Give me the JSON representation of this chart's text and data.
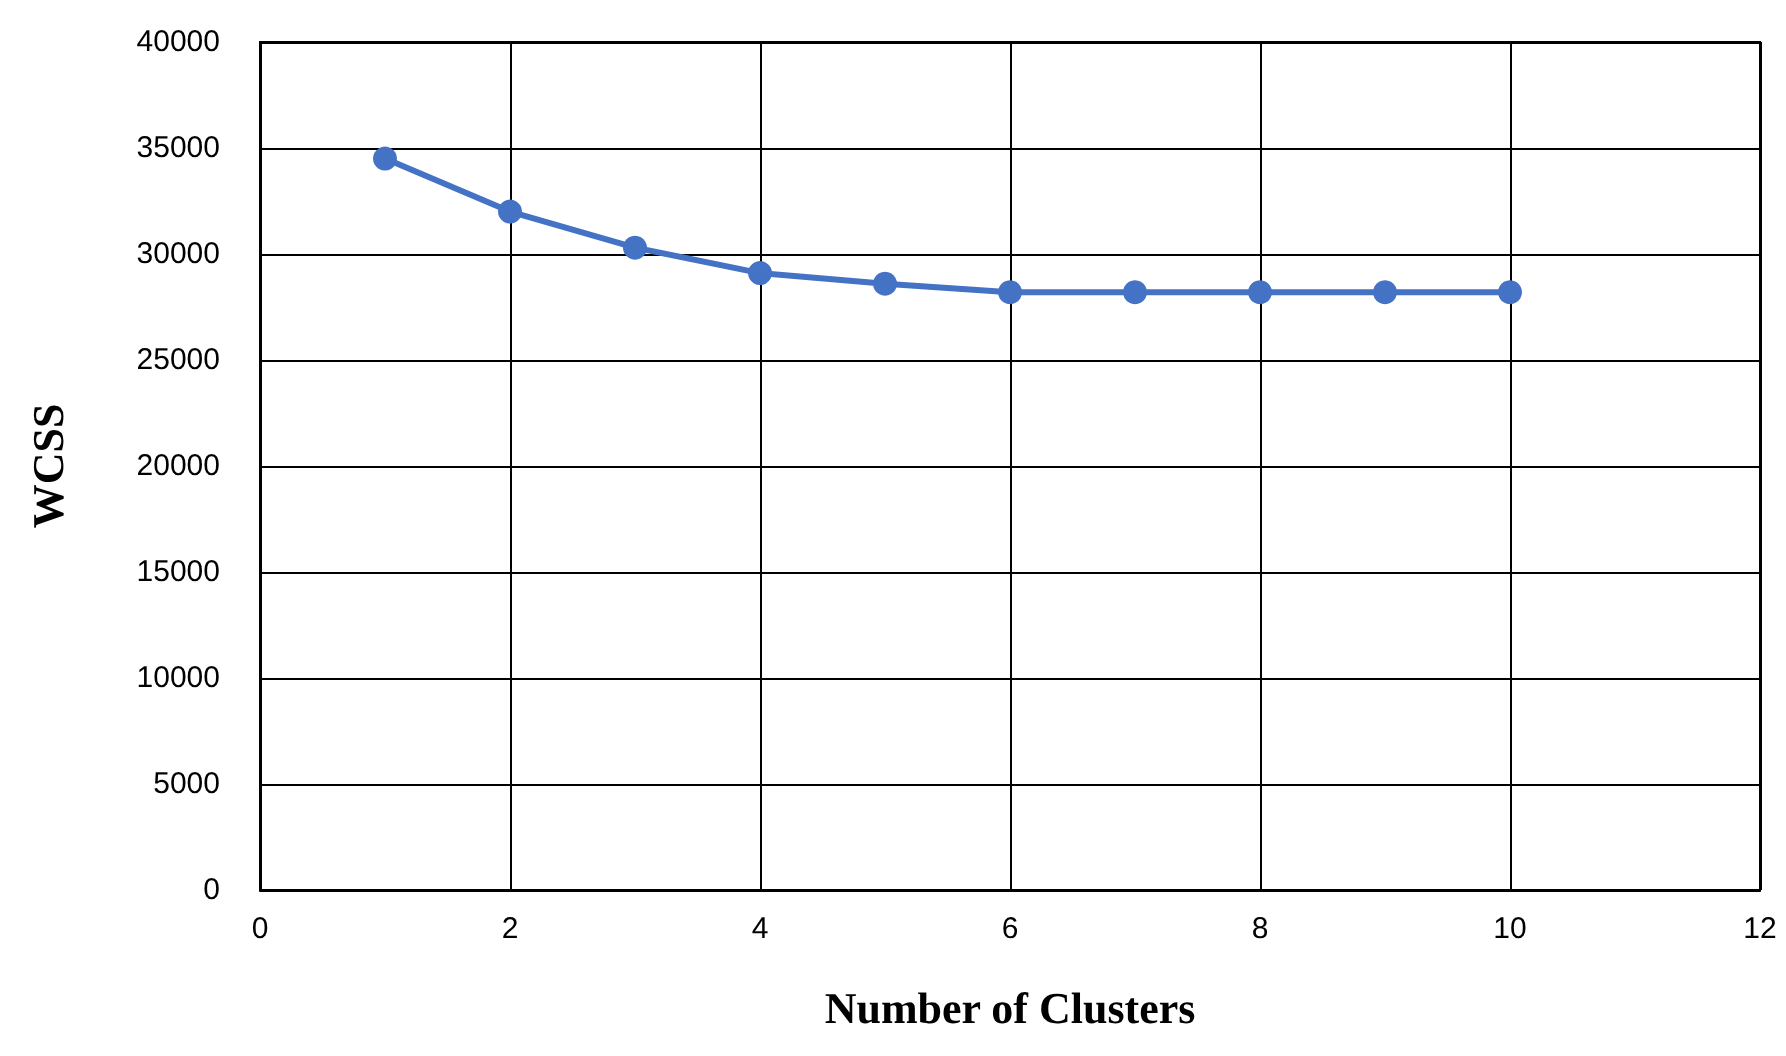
{
  "chart_data": {
    "type": "line",
    "xlabel": "Number of Clusters",
    "ylabel": "WCSS",
    "x": [
      1,
      2,
      3,
      4,
      5,
      6,
      7,
      8,
      9,
      10
    ],
    "series": [
      {
        "color": "#4472c4",
        "values": [
          34500,
          32000,
          30300,
          29100,
          28600,
          28200,
          28200,
          28200,
          28200,
          28200
        ]
      }
    ],
    "xlim": [
      0,
      12
    ],
    "xticks": [
      0,
      2,
      4,
      6,
      8,
      10,
      12
    ],
    "ylim": [
      0,
      40000
    ],
    "yticks": [
      0,
      5000,
      10000,
      15000,
      20000,
      25000,
      30000,
      35000,
      40000
    ],
    "grid": true,
    "marker": "circle",
    "line_style": "solid"
  }
}
